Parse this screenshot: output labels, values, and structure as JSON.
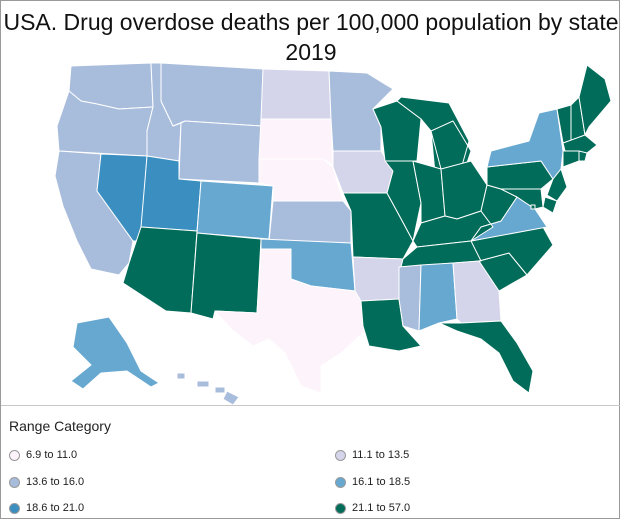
{
  "title_line1": "USA. Drug overdose deaths per 100,000 population by state",
  "title_line2": "2019",
  "legend": {
    "title": "Range Category",
    "items": [
      {
        "label": "6.9 to 11.0",
        "color": "#fdf3fa"
      },
      {
        "label": "11.1 to 13.5",
        "color": "#d4d5ea"
      },
      {
        "label": "13.6 to 16.0",
        "color": "#a8bcdc"
      },
      {
        "label": "16.1 to 18.5",
        "color": "#67a8d1"
      },
      {
        "label": "18.6 to 21.0",
        "color": "#3a8fc0"
      },
      {
        "label": "21.1 to 57.0",
        "color": "#016c59"
      }
    ]
  },
  "states": [
    {
      "name": "Washington",
      "category": 2
    },
    {
      "name": "Oregon",
      "category": 2
    },
    {
      "name": "California",
      "category": 2
    },
    {
      "name": "Nevada",
      "category": 4
    },
    {
      "name": "Idaho",
      "category": 2
    },
    {
      "name": "Montana",
      "category": 2
    },
    {
      "name": "Wyoming",
      "category": 2
    },
    {
      "name": "Utah",
      "category": 4
    },
    {
      "name": "Arizona",
      "category": 5
    },
    {
      "name": "Colorado",
      "category": 3
    },
    {
      "name": "New Mexico",
      "category": 5
    },
    {
      "name": "North Dakota",
      "category": 1
    },
    {
      "name": "South Dakota",
      "category": 0
    },
    {
      "name": "Nebraska",
      "category": 0
    },
    {
      "name": "Kansas",
      "category": 2
    },
    {
      "name": "Oklahoma",
      "category": 3
    },
    {
      "name": "Texas",
      "category": 0
    },
    {
      "name": "Minnesota",
      "category": 2
    },
    {
      "name": "Iowa",
      "category": 1
    },
    {
      "name": "Missouri",
      "category": 5
    },
    {
      "name": "Arkansas",
      "category": 1
    },
    {
      "name": "Louisiana",
      "category": 5
    },
    {
      "name": "Wisconsin",
      "category": 5
    },
    {
      "name": "Illinois",
      "category": 5
    },
    {
      "name": "Michigan",
      "category": 5
    },
    {
      "name": "Indiana",
      "category": 5
    },
    {
      "name": "Ohio",
      "category": 5
    },
    {
      "name": "Kentucky",
      "category": 5
    },
    {
      "name": "Tennessee",
      "category": 5
    },
    {
      "name": "Mississippi",
      "category": 2
    },
    {
      "name": "Alabama",
      "category": 3
    },
    {
      "name": "Georgia",
      "category": 1
    },
    {
      "name": "Florida",
      "category": 5
    },
    {
      "name": "South Carolina",
      "category": 5
    },
    {
      "name": "North Carolina",
      "category": 5
    },
    {
      "name": "Virginia",
      "category": 3
    },
    {
      "name": "West Virginia",
      "category": 5
    },
    {
      "name": "Pennsylvania",
      "category": 5
    },
    {
      "name": "New York",
      "category": 3
    },
    {
      "name": "New Jersey",
      "category": 5
    },
    {
      "name": "Delaware",
      "category": 5
    },
    {
      "name": "Maryland",
      "category": 5
    },
    {
      "name": "Vermont",
      "category": 5
    },
    {
      "name": "New Hampshire",
      "category": 5
    },
    {
      "name": "Maine",
      "category": 5
    },
    {
      "name": "Massachusetts",
      "category": 5
    },
    {
      "name": "Connecticut",
      "category": 5
    },
    {
      "name": "Rhode Island",
      "category": 5
    },
    {
      "name": "District of Columbia",
      "category": 5
    },
    {
      "name": "Alaska",
      "category": 3
    },
    {
      "name": "Hawaii",
      "category": 2
    }
  ]
}
